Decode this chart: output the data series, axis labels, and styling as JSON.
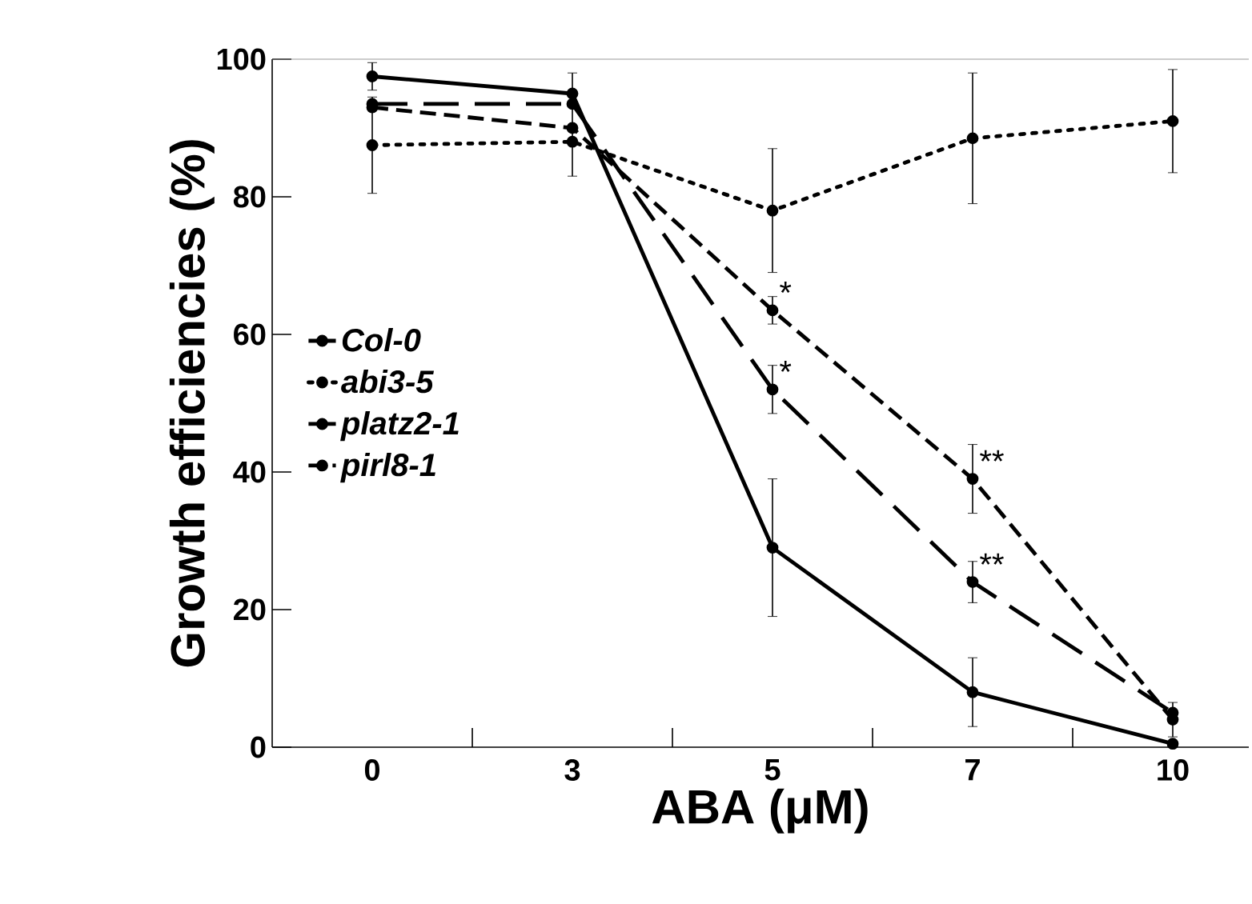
{
  "chart_data": {
    "type": "line",
    "xlabel": "ABA (μM)",
    "ylabel": "Growth efficiencies (%)",
    "categories": [
      "0",
      "3",
      "5",
      "7",
      "10"
    ],
    "ylim": [
      0,
      100
    ],
    "yticks": [
      0,
      20,
      40,
      60,
      80,
      100
    ],
    "grid": false,
    "legend": "left",
    "marker": "circle",
    "series": [
      {
        "name": "Col-0",
        "color": "#000000",
        "line_style": "solid",
        "values": [
          97.5,
          95,
          29,
          8,
          0.5
        ],
        "errors": [
          2,
          null,
          10,
          5,
          null
        ]
      },
      {
        "name": "abi3-5",
        "color": "#000000",
        "line_style": "dotted",
        "values": [
          87.5,
          88,
          78,
          88.5,
          91
        ],
        "errors": [
          7,
          [
            83,
            98
          ],
          9,
          9.5,
          7.5
        ]
      },
      {
        "name": "platz2-1",
        "color": "#000000",
        "line_style": "dashed",
        "values": [
          93.5,
          93.5,
          52,
          24,
          5
        ],
        "errors": [
          null,
          null,
          3.5,
          3,
          null
        ]
      },
      {
        "name": "pirl8-1",
        "color": "#000000",
        "line_style": "dashed",
        "values": [
          93,
          90,
          63.5,
          39,
          4
        ],
        "errors": [
          null,
          null,
          2,
          5,
          2.5
        ]
      }
    ],
    "annotations": [
      {
        "text": "*",
        "x": "5",
        "y": 63.5
      },
      {
        "text": "*",
        "x": "5",
        "y": 52
      },
      {
        "text": "**",
        "x": "7",
        "y": 39
      },
      {
        "text": "**",
        "x": "7",
        "y": 24
      }
    ]
  }
}
